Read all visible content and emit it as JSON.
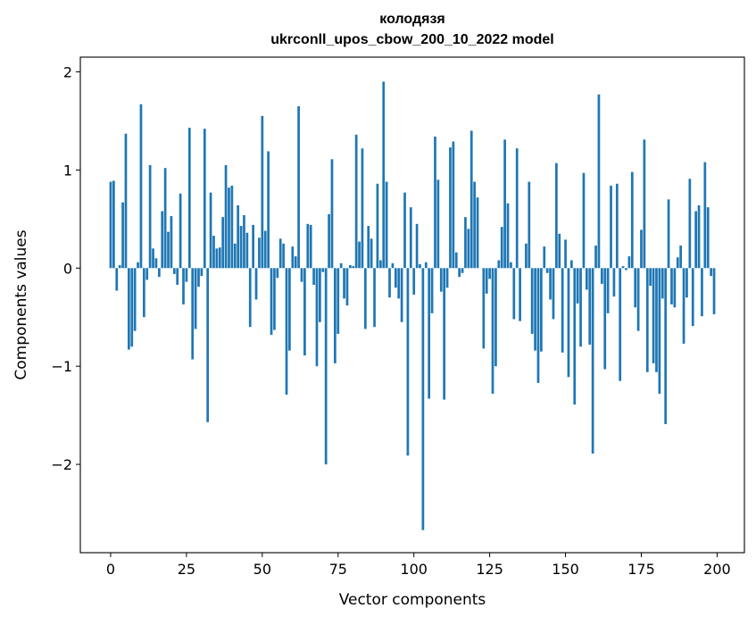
{
  "chart_data": {
    "type": "bar",
    "title_line1": "колодязя",
    "title_line2": "ukrconll_upos_cbow_200_10_2022 model",
    "xlabel": "Vector components",
    "ylabel": "Components values",
    "xlim": [
      -10,
      209
    ],
    "ylim": [
      -2.9,
      2.15
    ],
    "xticks": [
      0,
      25,
      50,
      75,
      100,
      125,
      150,
      175,
      200
    ],
    "yticks": [
      -2,
      -1,
      0,
      1,
      2
    ],
    "ytick_labels": [
      "−2",
      "−1",
      "0",
      "1",
      "2"
    ],
    "color": "#1f77b4",
    "values": [
      0.88,
      0.89,
      -0.23,
      0.03,
      0.67,
      1.37,
      -0.83,
      -0.8,
      -0.64,
      0.06,
      1.67,
      -0.5,
      -0.12,
      1.05,
      0.2,
      0.1,
      -0.09,
      0.58,
      1.02,
      0.37,
      0.53,
      -0.06,
      -0.17,
      0.76,
      -0.37,
      -0.14,
      1.43,
      -0.93,
      -0.62,
      -0.19,
      -0.08,
      1.42,
      -1.57,
      0.77,
      0.33,
      0.2,
      0.21,
      0.52,
      1.05,
      0.82,
      0.84,
      0.25,
      0.64,
      0.43,
      0.54,
      0.36,
      -0.6,
      0.44,
      -0.32,
      0.31,
      1.55,
      0.38,
      1.19,
      -0.68,
      -0.63,
      -0.1,
      0.3,
      0.25,
      -1.29,
      -0.84,
      0.22,
      0.12,
      1.65,
      -0.14,
      -0.89,
      0.45,
      0.44,
      -0.17,
      -1.0,
      -0.55,
      -0.04,
      -2.0,
      0.55,
      1.11,
      -0.97,
      -0.67,
      0.05,
      -0.31,
      -0.38,
      0.03,
      0.02,
      1.36,
      0.27,
      1.22,
      -0.62,
      0.43,
      0.3,
      -0.6,
      0.86,
      0.08,
      1.9,
      0.88,
      -0.3,
      0.05,
      -0.2,
      -0.31,
      -0.55,
      0.77,
      -1.91,
      0.62,
      -0.27,
      0.45,
      0.04,
      -2.67,
      0.06,
      -1.33,
      -0.46,
      1.34,
      0.9,
      -0.24,
      -1.34,
      -0.2,
      1.23,
      1.29,
      0.16,
      -0.09,
      -0.05,
      0.52,
      0.4,
      1.4,
      0.88,
      0.72,
      0.0,
      -0.82,
      -0.26,
      -0.11,
      -1.28,
      -1.0,
      0.08,
      0.42,
      1.31,
      0.66,
      0.06,
      -0.52,
      1.22,
      -0.54,
      0.0,
      0.25,
      0.88,
      -0.67,
      -0.84,
      -1.17,
      -0.85,
      0.22,
      -0.05,
      -0.32,
      -0.52,
      1.07,
      0.35,
      -0.86,
      0.29,
      -1.11,
      0.08,
      -1.39,
      -0.36,
      -0.8,
      0.97,
      -0.22,
      -0.78,
      -1.89,
      0.23,
      1.77,
      -0.16,
      -1.03,
      -0.46,
      0.84,
      -0.29,
      0.86,
      -1.15,
      0.02,
      -0.02,
      0.12,
      0.98,
      -0.4,
      -0.64,
      0.39,
      1.31,
      -1.06,
      -0.18,
      -0.97,
      -1.06,
      -1.28,
      -0.31,
      -1.59,
      0.7,
      -0.37,
      -0.4,
      0.11,
      0.23,
      -0.77,
      -0.3,
      0.91,
      -0.59,
      0.58,
      0.64,
      -0.49,
      1.08,
      0.62,
      -0.08,
      -0.47
    ]
  }
}
